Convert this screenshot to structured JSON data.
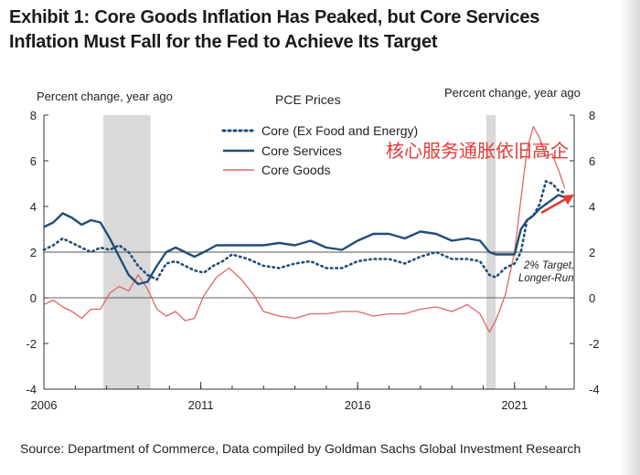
{
  "title_lines": [
    "Exhibit 1: Core Goods Inflation Has Peaked, but Core Services",
    "Inflation Must Fall for the Fed to Achieve Its Target"
  ],
  "source": "Source: Department of Commerce, Data compiled by Goldman Sachs Global Investment Research",
  "colors": {
    "core": "#1f4e79",
    "services": "#1f4e79",
    "goods": "#e06666",
    "recession": "#d9d9d9",
    "arrow": "#e53935",
    "annotation": "#e53935"
  },
  "chart_data": {
    "type": "line",
    "title": "PCE Prices",
    "ylabel_left": "Percent change, year ago",
    "ylabel_right": "Percent change, year ago",
    "xlim": [
      2006,
      2022.9
    ],
    "ylim": [
      -4,
      8
    ],
    "yticks": [
      -4,
      -2,
      0,
      2,
      4,
      6,
      8
    ],
    "ytick_labels": [
      "-4",
      "-2",
      "0",
      "2",
      "4",
      "6",
      "8"
    ],
    "xticks": [
      2006,
      2011,
      2016,
      2021
    ],
    "xtick_labels": [
      "2006",
      "2011",
      "2016",
      "2021"
    ],
    "recessions": [
      [
        2007.9,
        2009.4
      ],
      [
        2020.1,
        2020.4
      ]
    ],
    "target": {
      "value": 2,
      "label_lines": [
        "2% Target,",
        "Longer-Run"
      ]
    },
    "annotation": "核心服务通胀依旧高企",
    "legend": [
      "Core (Ex Food and Energy)",
      "Core Services",
      "Core Goods"
    ],
    "series": [
      {
        "name": "Core (Ex Food and Energy)",
        "style": "dotted",
        "x": [
          2006,
          2006.3,
          2006.6,
          2006.9,
          2007.2,
          2007.5,
          2007.8,
          2008.1,
          2008.4,
          2008.7,
          2009.0,
          2009.3,
          2009.6,
          2009.9,
          2010.2,
          2010.5,
          2010.8,
          2011.1,
          2011.4,
          2011.7,
          2012.0,
          2012.5,
          2013.0,
          2013.5,
          2014.0,
          2014.5,
          2015.0,
          2015.5,
          2016.0,
          2016.5,
          2017.0,
          2017.5,
          2018.0,
          2018.5,
          2019.0,
          2019.5,
          2019.9,
          2020.2,
          2020.4,
          2020.7,
          2021.0,
          2021.2,
          2021.4,
          2021.6,
          2021.8,
          2022.0,
          2022.2,
          2022.4,
          2022.6
        ],
        "values": [
          2.1,
          2.3,
          2.6,
          2.4,
          2.2,
          2.0,
          2.2,
          2.1,
          2.3,
          2.0,
          1.4,
          1.0,
          0.8,
          1.5,
          1.6,
          1.4,
          1.2,
          1.1,
          1.4,
          1.6,
          1.9,
          1.7,
          1.4,
          1.3,
          1.5,
          1.6,
          1.3,
          1.3,
          1.6,
          1.7,
          1.7,
          1.5,
          1.8,
          2.0,
          1.7,
          1.7,
          1.6,
          1.0,
          0.9,
          1.3,
          1.5,
          2.0,
          3.4,
          3.6,
          4.1,
          5.1,
          5.0,
          4.7,
          4.6
        ]
      },
      {
        "name": "Core Services",
        "style": "solid",
        "x": [
          2006,
          2006.3,
          2006.6,
          2006.9,
          2007.2,
          2007.5,
          2007.8,
          2008.1,
          2008.4,
          2008.7,
          2009.0,
          2009.3,
          2009.6,
          2009.9,
          2010.2,
          2010.5,
          2010.8,
          2011.1,
          2011.5,
          2012.0,
          2012.5,
          2013.0,
          2013.5,
          2014.0,
          2014.5,
          2015.0,
          2015.5,
          2016.0,
          2016.5,
          2017.0,
          2017.5,
          2018.0,
          2018.5,
          2019.0,
          2019.5,
          2019.9,
          2020.2,
          2020.4,
          2020.7,
          2021.0,
          2021.2,
          2021.4,
          2021.6,
          2021.8,
          2022.0,
          2022.2,
          2022.4,
          2022.6
        ],
        "values": [
          3.1,
          3.3,
          3.7,
          3.5,
          3.2,
          3.4,
          3.3,
          2.6,
          1.8,
          1.0,
          0.6,
          0.7,
          1.4,
          2.0,
          2.2,
          2.0,
          1.8,
          2.0,
          2.3,
          2.3,
          2.3,
          2.3,
          2.4,
          2.3,
          2.5,
          2.2,
          2.1,
          2.5,
          2.8,
          2.8,
          2.6,
          2.9,
          2.8,
          2.5,
          2.6,
          2.5,
          2.0,
          1.9,
          1.9,
          1.9,
          3.0,
          3.4,
          3.6,
          3.9,
          4.1,
          4.3,
          4.5,
          4.4
        ]
      },
      {
        "name": "Core Goods",
        "style": "solid",
        "x": [
          2006,
          2006.3,
          2006.6,
          2006.9,
          2007.2,
          2007.5,
          2007.8,
          2008.1,
          2008.4,
          2008.7,
          2009.0,
          2009.3,
          2009.6,
          2009.9,
          2010.2,
          2010.5,
          2010.8,
          2011.1,
          2011.5,
          2011.9,
          2012.3,
          2012.7,
          2013.0,
          2013.5,
          2014.0,
          2014.5,
          2015.0,
          2015.5,
          2016.0,
          2016.5,
          2017.0,
          2017.5,
          2018.0,
          2018.5,
          2019.0,
          2019.5,
          2019.9,
          2020.2,
          2020.4,
          2020.7,
          2021.0,
          2021.2,
          2021.4,
          2021.6,
          2021.8,
          2022.0,
          2022.2,
          2022.4,
          2022.6
        ],
        "values": [
          -0.3,
          -0.1,
          -0.4,
          -0.6,
          -0.9,
          -0.5,
          -0.5,
          0.2,
          0.5,
          0.3,
          1.0,
          0.4,
          -0.5,
          -0.8,
          -0.6,
          -1.0,
          -0.9,
          0.1,
          0.9,
          1.3,
          0.8,
          0.1,
          -0.6,
          -0.8,
          -0.9,
          -0.7,
          -0.7,
          -0.6,
          -0.6,
          -0.8,
          -0.7,
          -0.7,
          -0.5,
          -0.4,
          -0.6,
          -0.3,
          -0.7,
          -1.5,
          -1.0,
          0.1,
          2.0,
          4.3,
          6.5,
          7.5,
          7.0,
          6.2,
          6.3,
          5.6,
          4.8
        ]
      }
    ]
  }
}
